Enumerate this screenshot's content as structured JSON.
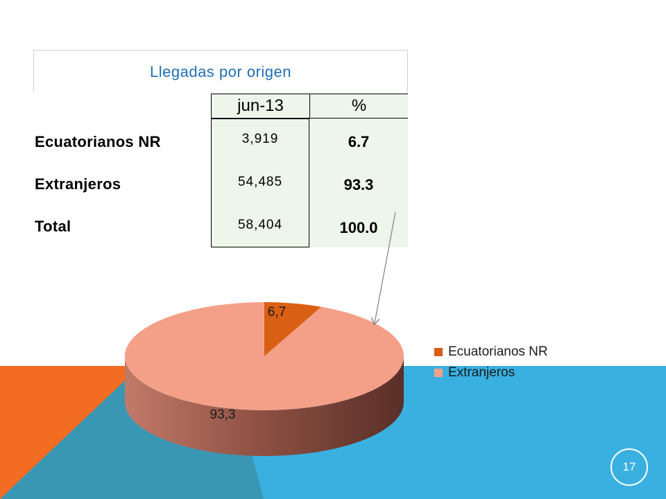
{
  "table": {
    "title": "Llegadas por origen",
    "header_month": "jun-13",
    "header_pct": "%",
    "rows": [
      {
        "label": "Ecuatorianos NR",
        "value": "3,919",
        "pct": "6.7"
      },
      {
        "label": "Extranjeros",
        "value": "54,485",
        "pct": "93.3"
      },
      {
        "label": "Total",
        "value": "58,404",
        "pct": "100.0"
      }
    ]
  },
  "chart_data": {
    "type": "pie",
    "style": "3d",
    "categories": [
      "Ecuatorianos NR",
      "Extranjeros"
    ],
    "values": [
      6.7,
      93.3
    ],
    "data_labels": [
      "6,7",
      "93,3"
    ],
    "colors": [
      "#d95f14",
      "#f4a088"
    ],
    "legend_position": "right"
  },
  "colors": {
    "accent_orange": "#f26c22",
    "accent_blue": "#3ab0e0",
    "accent_teal": "#3a97b4",
    "table_fill": "#eef5ea",
    "title_blue": "#1f6fb5"
  },
  "slide": {
    "page_number": "17"
  }
}
